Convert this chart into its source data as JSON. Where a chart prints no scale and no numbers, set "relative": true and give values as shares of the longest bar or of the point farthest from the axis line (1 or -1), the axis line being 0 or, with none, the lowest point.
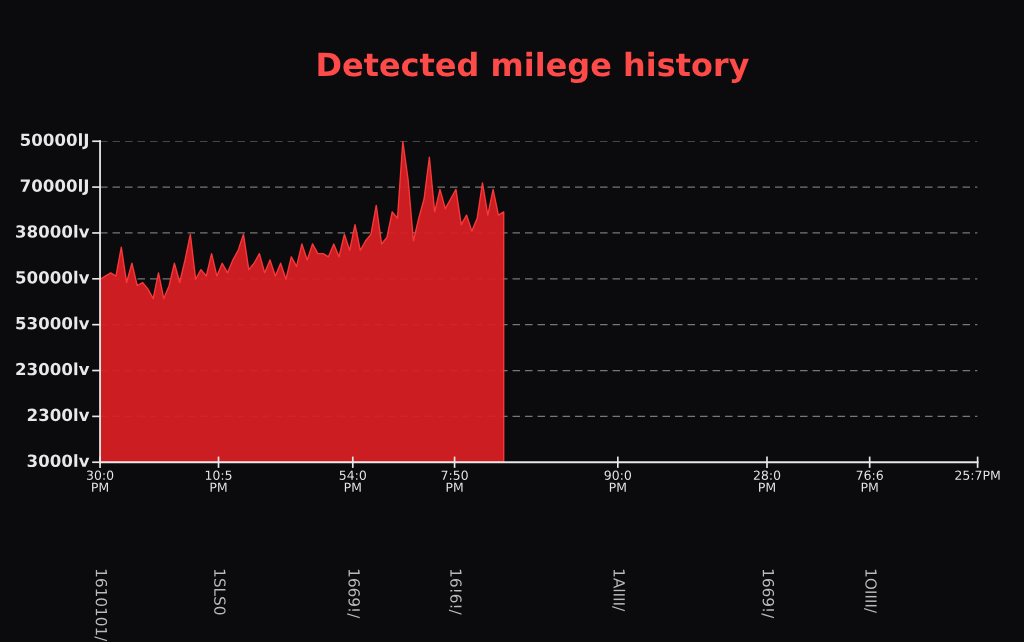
{
  "chart_data": {
    "type": "area",
    "title": "Detected milege history",
    "relative": true,
    "categories": [
      null,
      null,
      null,
      null,
      null,
      null,
      null,
      null,
      null,
      null,
      null,
      null,
      null,
      null,
      null,
      null,
      null,
      null,
      null,
      null,
      null,
      null,
      null,
      null,
      null,
      null,
      null,
      null,
      null,
      null,
      null,
      null,
      null,
      null,
      null,
      null,
      null,
      null,
      null,
      null,
      null,
      null,
      null,
      null,
      null,
      null,
      null,
      null,
      null,
      null,
      null,
      null,
      null,
      null,
      null,
      null,
      null,
      null,
      null,
      null,
      null,
      null,
      null,
      null,
      null,
      null,
      null,
      null,
      null,
      null,
      null,
      null,
      null,
      null,
      null,
      null,
      null
    ],
    "series": [
      {
        "color": "#d61f24",
        "values": [
          0.57,
          0.58,
          0.59,
          0.58,
          0.67,
          0.56,
          0.62,
          0.55,
          0.56,
          0.54,
          0.51,
          0.59,
          0.51,
          0.55,
          0.62,
          0.56,
          0.63,
          0.71,
          0.57,
          0.6,
          0.58,
          0.65,
          0.58,
          0.62,
          0.59,
          0.63,
          0.66,
          0.71,
          0.6,
          0.62,
          0.65,
          0.59,
          0.63,
          0.58,
          0.62,
          0.57,
          0.64,
          0.61,
          0.68,
          0.63,
          0.68,
          0.65,
          0.65,
          0.64,
          0.68,
          0.64,
          0.71,
          0.66,
          0.74,
          0.66,
          0.69,
          0.71,
          0.8,
          0.68,
          0.7,
          0.78,
          0.76,
          1,
          0.88,
          0.69,
          0.76,
          0.82,
          0.95,
          0.78,
          0.85,
          0.79,
          0.82,
          0.85,
          0.74,
          0.77,
          0.72,
          0.76,
          0.87,
          0.77,
          0.85,
          0.77,
          0.78
        ]
      }
    ],
    "grid": "y",
    "annotations": [
      "50000lJ",
      "70000lJ",
      "38000lv",
      "50000lv",
      "53000lv",
      "23000lv",
      "2300lv",
      "3000lv",
      "30:0\nPM",
      "10:5\nPM",
      "54:0\nPM",
      "7:50\nPM",
      "90:0\nPM",
      "28:0\nPM",
      "76:6\nPM",
      "25:7PM",
      "1610101/",
      "1SLS0",
      "1669!/",
      "16!6!/",
      "1AlIII/",
      "1669!/",
      "1OIIII/"
    ]
  }
}
